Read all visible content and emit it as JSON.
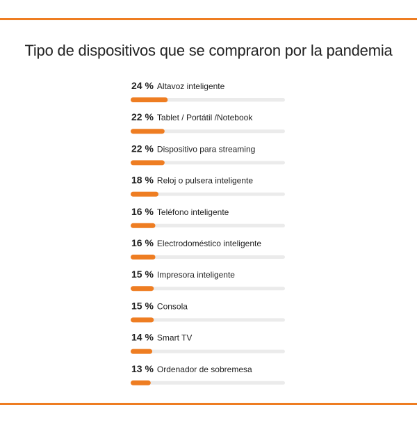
{
  "accent_color": "#ee7d22",
  "track_color": "#ebebeb",
  "chart_data": {
    "type": "bar",
    "orientation": "horizontal",
    "title": "Tipo de dispositivos que se compraron por la pandemia",
    "value_suffix": "%",
    "xlim": [
      0,
      100
    ],
    "categories": [
      "Altavoz inteligente",
      "Tablet / Portátil /Notebook",
      "Dispositivo para streaming",
      "Reloj o pulsera inteligente",
      "Teléfono inteligente",
      "Electrodoméstico inteligente",
      "Impresora inteligente",
      "Consola",
      "Smart TV",
      "Ordenador de sobremesa"
    ],
    "values": [
      24,
      22,
      22,
      18,
      16,
      16,
      15,
      15,
      14,
      13
    ]
  }
}
